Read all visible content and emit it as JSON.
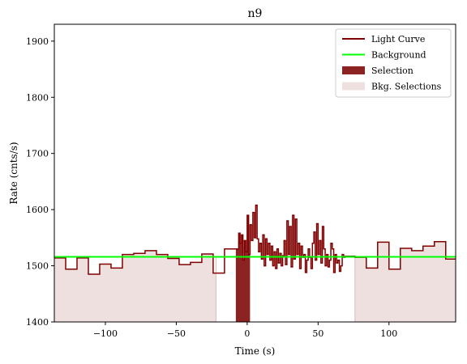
{
  "chart_data": {
    "type": "line",
    "title": "n9",
    "xlabel": "Time (s)",
    "ylabel": "Rate (cnts/s)",
    "xlim": [
      -136,
      147
    ],
    "ylim": [
      1400,
      1930
    ],
    "xticks": [
      -100,
      -50,
      0,
      50,
      100
    ],
    "yticks": [
      1400,
      1500,
      1600,
      1700,
      1800,
      1900
    ],
    "grid": false,
    "legend_position": "top-right",
    "background_level": 1516,
    "colors": {
      "light_curve": "#800000",
      "background": "#00ff00",
      "selection": "#8b2323",
      "bkg_selection": "#efe0e0",
      "bkg_selection_edge": "#dcbcbc"
    },
    "selection": [
      -8,
      2
    ],
    "bkg_selections": [
      [
        -136,
        -22
      ],
      [
        76,
        147
      ]
    ],
    "light_curve_steps": [
      [
        -136,
        1514
      ],
      [
        -128,
        1494
      ],
      [
        -120,
        1514
      ],
      [
        -112,
        1485
      ],
      [
        -104,
        1503
      ],
      [
        -96,
        1496
      ],
      [
        -88,
        1520
      ],
      [
        -80,
        1522
      ],
      [
        -72,
        1527
      ],
      [
        -64,
        1520
      ],
      [
        -56,
        1513
      ],
      [
        -48,
        1502
      ],
      [
        -40,
        1506
      ],
      [
        -32,
        1521
      ],
      [
        -24,
        1487
      ],
      [
        -16,
        1530
      ],
      [
        -8,
        1530
      ],
      [
        -6,
        1558
      ],
      [
        -5,
        1540
      ],
      [
        -4,
        1555
      ],
      [
        -3,
        1510
      ],
      [
        -2,
        1545
      ],
      [
        -1,
        1525
      ],
      [
        0,
        1590
      ],
      [
        1,
        1520
      ],
      [
        2,
        1573
      ],
      [
        3,
        1545
      ],
      [
        4,
        1595
      ],
      [
        5,
        1550
      ],
      [
        6,
        1608
      ],
      [
        7,
        1548
      ],
      [
        8,
        1525
      ],
      [
        9,
        1540
      ],
      [
        10,
        1512
      ],
      [
        11,
        1555
      ],
      [
        12,
        1500
      ],
      [
        13,
        1548
      ],
      [
        14,
        1520
      ],
      [
        15,
        1540
      ],
      [
        16,
        1510
      ],
      [
        17,
        1535
      ],
      [
        18,
        1500
      ],
      [
        19,
        1525
      ],
      [
        20,
        1495
      ],
      [
        21,
        1530
      ],
      [
        22,
        1505
      ],
      [
        23,
        1522
      ],
      [
        24,
        1500
      ],
      [
        25,
        1518
      ],
      [
        26,
        1545
      ],
      [
        27,
        1502
      ],
      [
        28,
        1580
      ],
      [
        29,
        1520
      ],
      [
        30,
        1570
      ],
      [
        31,
        1498
      ],
      [
        32,
        1590
      ],
      [
        33,
        1512
      ],
      [
        34,
        1583
      ],
      [
        35,
        1520
      ],
      [
        36,
        1540
      ],
      [
        37,
        1495
      ],
      [
        38,
        1535
      ],
      [
        39,
        1515
      ],
      [
        40,
        1520
      ],
      [
        41,
        1488
      ],
      [
        42,
        1510
      ],
      [
        43,
        1530
      ],
      [
        44,
        1515
      ],
      [
        45,
        1495
      ],
      [
        46,
        1540
      ],
      [
        47,
        1560
      ],
      [
        48,
        1510
      ],
      [
        49,
        1575
      ],
      [
        50,
        1520
      ],
      [
        51,
        1545
      ],
      [
        52,
        1505
      ],
      [
        53,
        1570
      ],
      [
        54,
        1530
      ],
      [
        55,
        1500
      ],
      [
        56,
        1520
      ],
      [
        57,
        1498
      ],
      [
        58,
        1510
      ],
      [
        59,
        1540
      ],
      [
        60,
        1530
      ],
      [
        61,
        1488
      ],
      [
        62,
        1520
      ],
      [
        63,
        1505
      ],
      [
        64,
        1510
      ],
      [
        65,
        1490
      ],
      [
        66,
        1500
      ],
      [
        67,
        1520
      ],
      [
        68,
        1515
      ],
      [
        69,
        1517
      ],
      [
        76,
        1515
      ],
      [
        84,
        1496
      ],
      [
        92,
        1542
      ],
      [
        100,
        1494
      ],
      [
        108,
        1531
      ],
      [
        116,
        1527
      ],
      [
        124,
        1535
      ],
      [
        132,
        1543
      ],
      [
        140,
        1512
      ],
      [
        147,
        1512
      ]
    ],
    "legend": [
      {
        "label": "Light Curve",
        "kind": "line",
        "color_key": "light_curve"
      },
      {
        "label": "Background",
        "kind": "line",
        "color_key": "background"
      },
      {
        "label": "Selection",
        "kind": "patch",
        "color_key": "selection"
      },
      {
        "label": "Bkg. Selections",
        "kind": "patch",
        "color_key": "bkg_selection"
      }
    ]
  }
}
